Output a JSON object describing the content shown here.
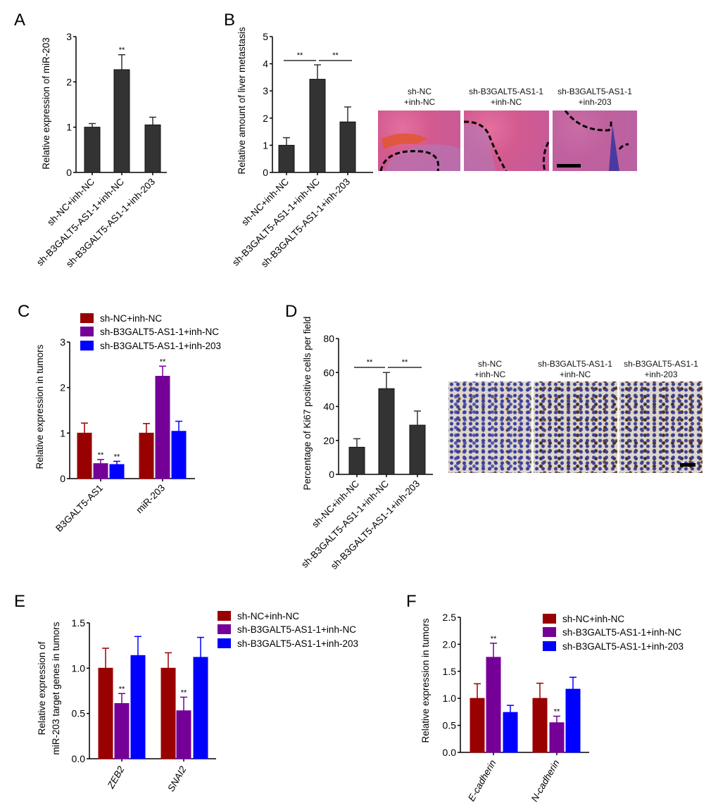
{
  "panels": {
    "A": "A",
    "B": "B",
    "C": "C",
    "D": "D",
    "E": "E",
    "F": "F"
  },
  "colors": {
    "dark": "#333333",
    "red": "#990000",
    "purple": "#740098",
    "blue": "#0000ff"
  },
  "images": {
    "B": [
      {
        "line1": "sh-NC",
        "line2": "+inh-NC"
      },
      {
        "line1": "sh-B3GALT5-AS1-1",
        "line2": "+inh-NC"
      },
      {
        "line1": "sh-B3GALT5-AS1-1",
        "line2": "+inh-203"
      }
    ],
    "D": [
      {
        "line1": "sh-NC",
        "line2": "+inh-NC"
      },
      {
        "line1": "sh-B3GALT5-AS1-1",
        "line2": "+inh-NC"
      },
      {
        "line1": "sh-B3GALT5-AS1-1",
        "line2": "+inh-203"
      }
    ]
  },
  "chart_data": [
    {
      "panel": "A",
      "type": "bar",
      "title": "",
      "ylabel": [
        "Relative expression of miR-203"
      ],
      "ylim": [
        0,
        3
      ],
      "yticks": [
        "0",
        "1",
        "2",
        "3"
      ],
      "categories": [
        "sh-NC+inh-NC",
        "sh-B3GALT5-AS1-1+inh-NC",
        "sh-B3GALT5-AS1-1+inh-203"
      ],
      "series": [
        {
          "name": "",
          "color": "#333333",
          "values": [
            1.0,
            2.27,
            1.05
          ],
          "errors": [
            0.08,
            0.33,
            0.17
          ],
          "stars": [
            "",
            "**",
            ""
          ]
        }
      ]
    },
    {
      "panel": "B",
      "type": "bar",
      "title": "",
      "ylabel": [
        "Relative amount of liver metastasis"
      ],
      "ylim": [
        0,
        5
      ],
      "yticks": [
        "0",
        "1",
        "2",
        "3",
        "4",
        "5"
      ],
      "categories": [
        "sh-NC+inh-NC",
        "sh-B3GALT5-AS1-1+inh-NC",
        "sh-B3GALT5-AS1-1+inh-203"
      ],
      "series": [
        {
          "name": "",
          "color": "#333333",
          "values": [
            1.0,
            3.43,
            1.86
          ],
          "errors": [
            0.28,
            0.53,
            0.55
          ],
          "stars": [
            "",
            "",
            ""
          ]
        }
      ],
      "brackets": [
        {
          "from": 0,
          "to": 1,
          "label": "**"
        },
        {
          "from": 1,
          "to": 2,
          "label": "**"
        }
      ]
    },
    {
      "panel": "C",
      "type": "bar",
      "title": "",
      "ylabel": [
        "Relative expression in tumors"
      ],
      "ylim": [
        0,
        3
      ],
      "yticks": [
        "0",
        "1",
        "2",
        "3"
      ],
      "categories": [
        "B3GALT5-AS1",
        "miR-203"
      ],
      "legend": "top",
      "series": [
        {
          "name": "sh-NC+inh-NC",
          "color": "#990000",
          "values": [
            1.0,
            1.0
          ],
          "errors": [
            0.22,
            0.21
          ],
          "stars": [
            "",
            ""
          ]
        },
        {
          "name": "sh-B3GALT5-AS1-1+inh-NC",
          "color": "#740098",
          "values": [
            0.33,
            2.25
          ],
          "errors": [
            0.09,
            0.22
          ],
          "stars": [
            "**",
            "**"
          ]
        },
        {
          "name": "sh-B3GALT5-AS1-1+inh-203",
          "color": "#0000ff",
          "values": [
            0.31,
            1.04
          ],
          "errors": [
            0.07,
            0.22
          ],
          "stars": [
            "**",
            ""
          ]
        }
      ]
    },
    {
      "panel": "D",
      "type": "bar",
      "title": "",
      "ylabel": [
        "Percentage of Ki67 positive cells per field"
      ],
      "ylim": [
        0,
        80
      ],
      "yticks": [
        "0",
        "20",
        "40",
        "60",
        "80"
      ],
      "categories": [
        "sh-NC+inh-NC",
        "sh-B3GALT5-AS1-1+inh-NC",
        "sh-B3GALT5-AS1-1+inh-203"
      ],
      "series": [
        {
          "name": "",
          "color": "#333333",
          "values": [
            16,
            50.5,
            29
          ],
          "errors": [
            5,
            9.5,
            8.3
          ],
          "stars": [
            "",
            "",
            ""
          ]
        }
      ],
      "brackets": [
        {
          "from": 0,
          "to": 1,
          "label": "**"
        },
        {
          "from": 1,
          "to": 2,
          "label": "**"
        }
      ]
    },
    {
      "panel": "E",
      "type": "bar",
      "title": "",
      "ylabel": [
        "Relative expression of",
        "miR-203 target genes in tumors"
      ],
      "ylim": [
        0,
        1.5
      ],
      "yticks": [
        "0.0",
        "0.5",
        "1.0",
        "1.5"
      ],
      "categories": [
        "ZEB2",
        "SNAI2"
      ],
      "legend": "right",
      "series": [
        {
          "name": "sh-NC+inh-NC",
          "color": "#990000",
          "values": [
            1.0,
            1.0
          ],
          "errors": [
            0.22,
            0.17
          ],
          "stars": [
            "",
            ""
          ]
        },
        {
          "name": "sh-B3GALT5-AS1-1+inh-NC",
          "color": "#740098",
          "values": [
            0.61,
            0.53
          ],
          "errors": [
            0.11,
            0.15
          ],
          "stars": [
            "**",
            "**"
          ]
        },
        {
          "name": "sh-B3GALT5-AS1-1+inh-203",
          "color": "#0000ff",
          "values": [
            1.14,
            1.12
          ],
          "errors": [
            0.21,
            0.22
          ],
          "stars": [
            "",
            ""
          ]
        }
      ]
    },
    {
      "panel": "F",
      "type": "bar",
      "title": "",
      "ylabel": [
        "Relative expression in tumors"
      ],
      "ylim": [
        0,
        2.5
      ],
      "yticks": [
        "0.0",
        "0.5",
        "1.0",
        "1.5",
        "2.0",
        "2.5"
      ],
      "categories": [
        "E-cadherin",
        "N-cadherin"
      ],
      "legend": "right",
      "series": [
        {
          "name": "sh-NC+inh-NC",
          "color": "#990000",
          "values": [
            1.0,
            1.0
          ],
          "errors": [
            0.27,
            0.28
          ],
          "stars": [
            "",
            ""
          ]
        },
        {
          "name": "sh-B3GALT5-AS1-1+inh-NC",
          "color": "#740098",
          "values": [
            1.76,
            0.55
          ],
          "errors": [
            0.26,
            0.12
          ],
          "stars": [
            "**",
            "**"
          ]
        },
        {
          "name": "sh-B3GALT5-AS1-1+inh-203",
          "color": "#0000ff",
          "values": [
            0.74,
            1.17
          ],
          "errors": [
            0.13,
            0.22
          ],
          "stars": [
            "",
            ""
          ]
        }
      ]
    }
  ]
}
